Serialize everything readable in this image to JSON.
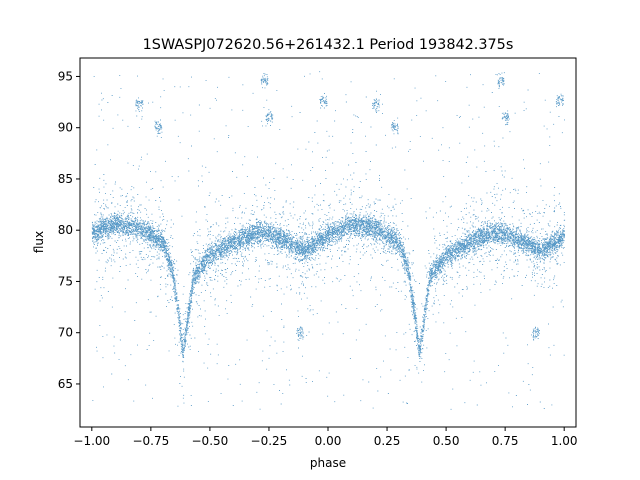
{
  "chart_data": {
    "type": "scatter",
    "title": "1SWASPJ072620.56+261432.1 Period 193842.375s",
    "xlabel": "phase",
    "ylabel": "flux",
    "xlim": [
      -1.05,
      1.05
    ],
    "ylim": [
      60.8,
      96.8
    ],
    "xticks": [
      -1.0,
      -0.75,
      -0.5,
      -0.25,
      0.0,
      0.25,
      0.5,
      0.75,
      1.0
    ],
    "xtick_labels": [
      "−1.00",
      "−0.75",
      "−0.50",
      "−0.25",
      "0.00",
      "0.25",
      "0.50",
      "0.75",
      "1.00"
    ],
    "yticks": [
      65,
      70,
      75,
      80,
      85,
      90,
      95
    ],
    "ytick_labels": [
      "65",
      "70",
      "75",
      "80",
      "85",
      "90",
      "95"
    ],
    "grid": false,
    "marker_color": "#1f77b4",
    "light_curve": {
      "baseline_profile": [
        [
          -1.0,
          79.8
        ],
        [
          -0.9,
          80.6
        ],
        [
          -0.8,
          80.2
        ],
        [
          -0.7,
          78.8
        ],
        [
          -0.66,
          76.0
        ],
        [
          -0.63,
          71.0
        ],
        [
          -0.615,
          68.0
        ],
        [
          -0.6,
          70.5
        ],
        [
          -0.57,
          75.5
        ],
        [
          -0.5,
          77.6
        ],
        [
          -0.4,
          78.8
        ],
        [
          -0.3,
          79.8
        ],
        [
          -0.25,
          79.7
        ],
        [
          -0.15,
          78.6
        ],
        [
          -0.1,
          78.0
        ],
        [
          0.0,
          79.5
        ],
        [
          0.1,
          80.6
        ],
        [
          0.2,
          80.2
        ],
        [
          0.3,
          78.8
        ],
        [
          0.34,
          76.0
        ],
        [
          0.37,
          71.0
        ],
        [
          0.385,
          68.0
        ],
        [
          0.4,
          70.5
        ],
        [
          0.43,
          75.5
        ],
        [
          0.5,
          77.6
        ],
        [
          0.6,
          78.8
        ],
        [
          0.7,
          79.8
        ],
        [
          0.75,
          79.7
        ],
        [
          0.85,
          78.6
        ],
        [
          0.9,
          78.0
        ],
        [
          1.0,
          79.5
        ]
      ],
      "band_halfwidth": 1.2,
      "outlier_clusters": [
        {
          "x": -0.8,
          "y": 92.3
        },
        {
          "x": -0.72,
          "y": 90.1
        },
        {
          "x": -0.27,
          "y": 94.6
        },
        {
          "x": -0.25,
          "y": 91.0
        },
        {
          "x": -0.02,
          "y": 92.6
        },
        {
          "x": 0.2,
          "y": 92.3
        },
        {
          "x": 0.28,
          "y": 90.1
        },
        {
          "x": 0.73,
          "y": 94.6
        },
        {
          "x": 0.75,
          "y": 91.0
        },
        {
          "x": 0.98,
          "y": 92.6
        },
        {
          "x": -0.12,
          "y": 70.0
        },
        {
          "x": 0.88,
          "y": 70.0
        }
      ]
    }
  }
}
